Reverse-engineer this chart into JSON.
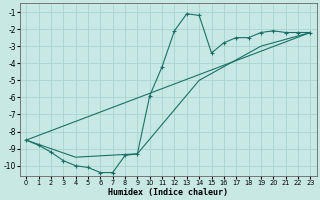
{
  "xlabel": "Humidex (Indice chaleur)",
  "bg_color": "#c8e8e4",
  "line_color": "#1a7068",
  "grid_color": "#aad4ce",
  "xlim": [
    -0.5,
    23.5
  ],
  "ylim": [
    -10.6,
    -0.5
  ],
  "xticks": [
    0,
    1,
    2,
    3,
    4,
    5,
    6,
    7,
    8,
    9,
    10,
    11,
    12,
    13,
    14,
    15,
    16,
    17,
    18,
    19,
    20,
    21,
    22,
    23
  ],
  "yticks": [
    -1,
    -2,
    -3,
    -4,
    -5,
    -6,
    -7,
    -8,
    -9,
    -10
  ],
  "line1_x": [
    0,
    1,
    2,
    3,
    4,
    5,
    6,
    7,
    8,
    9,
    10,
    11,
    12,
    13,
    14,
    15,
    16,
    17,
    18,
    19,
    20,
    21,
    22,
    23
  ],
  "line1_y": [
    -8.5,
    -8.8,
    -9.2,
    -9.7,
    -10.0,
    -10.1,
    -10.4,
    -10.4,
    -9.4,
    -9.3,
    -5.9,
    -4.2,
    -2.1,
    -1.1,
    -1.2,
    -3.4,
    -2.8,
    -2.5,
    -2.5,
    -2.2,
    -2.1,
    -2.2,
    -2.2,
    -2.2
  ],
  "line2_x": [
    0,
    23
  ],
  "line2_y": [
    -8.5,
    -2.2
  ],
  "line3_x": [
    0,
    4,
    9,
    14,
    19,
    23
  ],
  "line3_y": [
    -8.5,
    -9.5,
    -9.3,
    -5.0,
    -3.0,
    -2.2
  ],
  "xtick_fontsize": 4.8,
  "ytick_fontsize": 5.5,
  "xlabel_fontsize": 6.0
}
